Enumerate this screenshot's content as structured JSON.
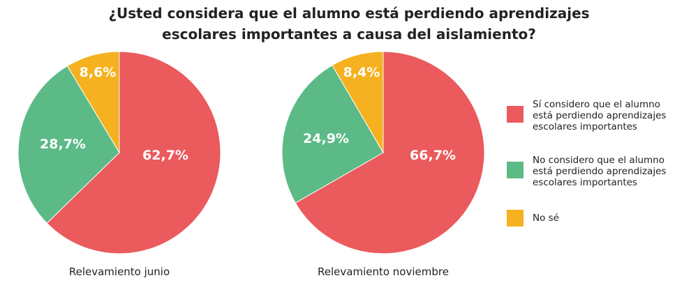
{
  "title_line1": "¿Usted considera que el alumno está perdiendo aprendizajes",
  "title_line2": "escolares importantes a causa del aislamiento?",
  "colors": {
    "si": "#EB5A5C",
    "no": "#5BBA86",
    "ns": "#F5B11F"
  },
  "legend": [
    {
      "key": "si",
      "label": "Sí considero que el alumno\nestá perdiendo aprendizajes\nescolares importantes"
    },
    {
      "key": "no",
      "label": "No considero que el alumno\nestá perdiendo aprendizajes\nescolares importantes"
    },
    {
      "key": "ns",
      "label": "No sé"
    }
  ],
  "chart_data": [
    {
      "type": "pie",
      "caption": "Relevamiento junio",
      "categories": [
        "Sí considero que el alumno está perdiendo aprendizajes escolares importantes",
        "No considero que el alumno está perdiendo aprendizajes escolares importantes",
        "No sé"
      ],
      "values": [
        62.7,
        28.7,
        8.6
      ],
      "labels": [
        "62,7%",
        "28,7%",
        "8,6%"
      ]
    },
    {
      "type": "pie",
      "caption": "Relevamiento noviembre",
      "categories": [
        "Sí considero que el alumno está perdiendo aprendizajes escolares importantes",
        "No considero que el alumno está perdiendo aprendizajes escolares importantes",
        "No sé"
      ],
      "values": [
        66.7,
        24.9,
        8.4
      ],
      "labels": [
        "66,7%",
        "24,9%",
        "8,4%"
      ]
    }
  ]
}
